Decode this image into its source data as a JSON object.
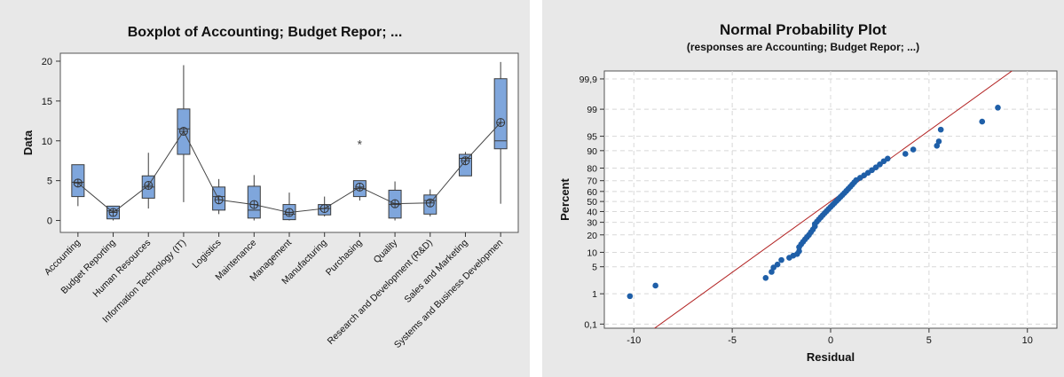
{
  "colors": {
    "panel_bg": "#e8e8e8",
    "plot_bg": "#ffffff",
    "box_fill": "#7fa6dc",
    "box_stroke": "#3c3c3c",
    "point": "#1f5fa8",
    "fit_line": "#b22222",
    "grid": "#d8d8d8"
  },
  "chart_data": [
    {
      "type": "box",
      "title": "Boxplot of Accounting; Budget Repor; ...",
      "ylabel": "Data",
      "xlabel": "",
      "ylim": [
        -1.5,
        21
      ],
      "yticks": [
        0,
        5,
        10,
        15,
        20
      ],
      "mean_connect_line": true,
      "mean_symbol": "circle-plus",
      "categories": [
        "Accounting",
        "Budget Reporting",
        "Human Resources",
        "Information Technology (IT)",
        "Logistics",
        "Maintenance",
        "Management",
        "Manufacturing",
        "Purchasing",
        "Quality",
        "Research and Development (R&D)",
        "Sales and Marketing",
        "Systems and Business Development"
      ],
      "display_labels": [
        "Accounting",
        "Budget Reporting",
        "Human Resources",
        "Information Technology (IT)",
        "Logistics",
        "Maintenance",
        "Management",
        "Manufacturing",
        "Purchasing",
        "Quality",
        "Research and Development (R&D)",
        "Sales and Marketing",
        "Systems and Business Developmen"
      ],
      "boxes": [
        {
          "min": 1.8,
          "q1": 3.0,
          "median": 4.8,
          "q3": 7.0,
          "max": 7.0,
          "mean": 4.7,
          "outliers": []
        },
        {
          "min": 0.0,
          "q1": 0.2,
          "median": 1.2,
          "q3": 1.8,
          "max": 1.8,
          "mean": 1.0,
          "outliers": []
        },
        {
          "min": 1.5,
          "q1": 2.8,
          "median": 4.2,
          "q3": 5.6,
          "max": 8.5,
          "mean": 4.4,
          "outliers": []
        },
        {
          "min": 2.3,
          "q1": 8.3,
          "median": 11.5,
          "q3": 14.0,
          "max": 19.5,
          "mean": 11.2,
          "outliers": []
        },
        {
          "min": 0.8,
          "q1": 1.3,
          "median": 3.0,
          "q3": 4.2,
          "max": 5.2,
          "mean": 2.6,
          "outliers": []
        },
        {
          "min": 0.0,
          "q1": 0.3,
          "median": 1.3,
          "q3": 4.3,
          "max": 5.7,
          "mean": 2.0,
          "outliers": []
        },
        {
          "min": 0.0,
          "q1": 0.1,
          "median": 0.8,
          "q3": 2.0,
          "max": 3.5,
          "mean": 1.0,
          "outliers": []
        },
        {
          "min": 0.5,
          "q1": 0.7,
          "median": 1.5,
          "q3": 2.0,
          "max": 3.0,
          "mean": 1.5,
          "outliers": []
        },
        {
          "min": 2.5,
          "q1": 3.0,
          "median": 4.0,
          "q3": 5.0,
          "max": 5.0,
          "mean": 4.2,
          "outliers": [
            9.7
          ]
        },
        {
          "min": 0.0,
          "q1": 0.3,
          "median": 2.0,
          "q3": 3.8,
          "max": 4.9,
          "mean": 2.1,
          "outliers": []
        },
        {
          "min": 0.5,
          "q1": 0.8,
          "median": 2.5,
          "q3": 3.2,
          "max": 3.9,
          "mean": 2.2,
          "outliers": []
        },
        {
          "min": 5.6,
          "q1": 5.6,
          "median": 7.8,
          "q3": 8.3,
          "max": 8.6,
          "mean": 7.5,
          "outliers": []
        },
        {
          "min": 2.1,
          "q1": 9.0,
          "median": 10.0,
          "q3": 17.8,
          "max": 19.9,
          "mean": 12.3,
          "outliers": []
        }
      ]
    },
    {
      "type": "scatter",
      "title": "Normal Probability Plot",
      "subtitle": "(responses are Accounting; Budget Repor; ...)",
      "xlabel": "Residual",
      "ylabel": "Percent",
      "xlim": [
        -11.5,
        11.5
      ],
      "xticks": [
        -10,
        -5,
        0,
        5,
        10
      ],
      "yscale": "normal-probability",
      "yticks": [
        0.1,
        1,
        5,
        10,
        20,
        30,
        40,
        50,
        60,
        70,
        80,
        90,
        95,
        99,
        99.9
      ],
      "ytick_labels": [
        "0,1",
        "1",
        "5",
        "10",
        "20",
        "30",
        "40",
        "50",
        "60",
        "70",
        "80",
        "90",
        "95",
        "99",
        "99,9"
      ],
      "grid": true,
      "fit_line": {
        "mean": 0.0,
        "sd": 2.8
      },
      "points": [
        {
          "x": -10.2,
          "y": 0.85
        },
        {
          "x": -8.9,
          "y": 1.7
        },
        {
          "x": -3.3,
          "y": 2.7
        },
        {
          "x": -3.0,
          "y": 3.8
        },
        {
          "x": -2.9,
          "y": 4.8
        },
        {
          "x": -2.7,
          "y": 5.6
        },
        {
          "x": -2.5,
          "y": 7.0
        },
        {
          "x": -2.1,
          "y": 7.8
        },
        {
          "x": -1.9,
          "y": 8.6
        },
        {
          "x": -1.7,
          "y": 9.3
        },
        {
          "x": -1.6,
          "y": 10.5
        },
        {
          "x": -1.6,
          "y": 12.5
        },
        {
          "x": -1.5,
          "y": 14.0
        },
        {
          "x": -1.4,
          "y": 15.5
        },
        {
          "x": -1.3,
          "y": 17.0
        },
        {
          "x": -1.2,
          "y": 18.5
        },
        {
          "x": -1.1,
          "y": 20.0
        },
        {
          "x": -1.0,
          "y": 22.0
        },
        {
          "x": -0.9,
          "y": 24.0
        },
        {
          "x": -0.8,
          "y": 26.5
        },
        {
          "x": -0.8,
          "y": 28.5
        },
        {
          "x": -0.7,
          "y": 30.5
        },
        {
          "x": -0.6,
          "y": 32.5
        },
        {
          "x": -0.5,
          "y": 34.5
        },
        {
          "x": -0.4,
          "y": 36.5
        },
        {
          "x": -0.3,
          "y": 38.5
        },
        {
          "x": -0.2,
          "y": 40.5
        },
        {
          "x": -0.1,
          "y": 42.5
        },
        {
          "x": 0.0,
          "y": 44.5
        },
        {
          "x": 0.1,
          "y": 46.5
        },
        {
          "x": 0.2,
          "y": 48.5
        },
        {
          "x": 0.3,
          "y": 50.5
        },
        {
          "x": 0.4,
          "y": 52.5
        },
        {
          "x": 0.5,
          "y": 54.5
        },
        {
          "x": 0.6,
          "y": 56.5
        },
        {
          "x": 0.7,
          "y": 58.5
        },
        {
          "x": 0.8,
          "y": 60.5
        },
        {
          "x": 0.9,
          "y": 62.5
        },
        {
          "x": 1.0,
          "y": 64.5
        },
        {
          "x": 1.1,
          "y": 66.5
        },
        {
          "x": 1.2,
          "y": 68.5
        },
        {
          "x": 1.3,
          "y": 70.5
        },
        {
          "x": 1.5,
          "y": 72.5
        },
        {
          "x": 1.7,
          "y": 74.5
        },
        {
          "x": 1.9,
          "y": 76.5
        },
        {
          "x": 2.1,
          "y": 78.5
        },
        {
          "x": 2.3,
          "y": 80.5
        },
        {
          "x": 2.5,
          "y": 82.5
        },
        {
          "x": 2.7,
          "y": 84.5
        },
        {
          "x": 2.9,
          "y": 86.0
        },
        {
          "x": 3.8,
          "y": 88.5
        },
        {
          "x": 4.2,
          "y": 90.5
        },
        {
          "x": 5.4,
          "y": 92.0
        },
        {
          "x": 5.5,
          "y": 93.5
        },
        {
          "x": 5.6,
          "y": 96.5
        },
        {
          "x": 7.7,
          "y": 97.8
        },
        {
          "x": 8.5,
          "y": 99.1
        }
      ]
    }
  ]
}
